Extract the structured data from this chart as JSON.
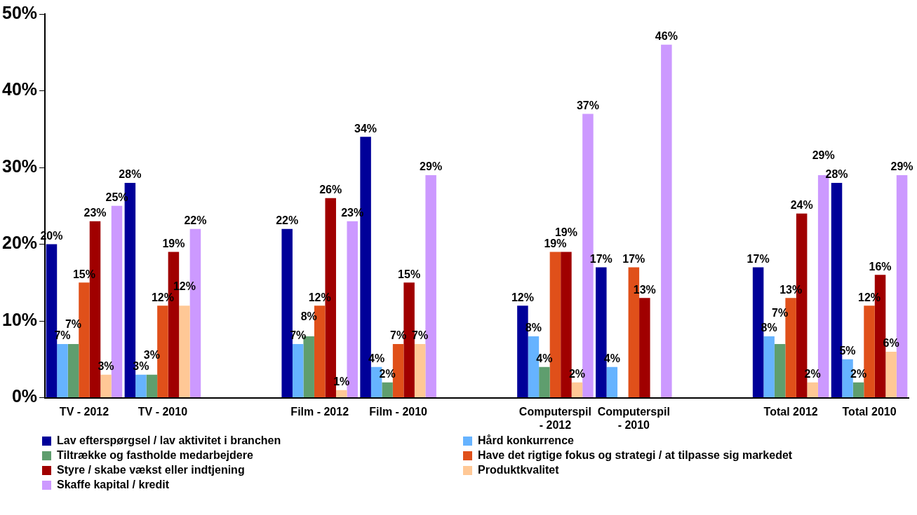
{
  "chart_data": {
    "type": "bar",
    "categories": [
      "TV - 2012",
      "TV - 2010",
      null,
      "Film - 2012",
      "Film - 2010",
      null,
      "Computerspil - 2012",
      "Computerspil - 2010",
      null,
      "Total 2012",
      "Total 2010"
    ],
    "series": [
      {
        "name": "Lav efterspørgsel / lav aktivitet i branchen",
        "color": "#000099",
        "values": [
          20,
          28,
          null,
          22,
          34,
          null,
          12,
          17,
          null,
          17,
          28
        ],
        "value_labels": [
          "20%",
          "28%",
          null,
          "22%",
          "34%",
          null,
          "12%",
          "17%",
          null,
          "17%",
          "28%"
        ]
      },
      {
        "name": "Hård konkurrence",
        "color": "#66b3ff",
        "values": [
          7,
          3,
          null,
          7,
          4,
          null,
          8,
          4,
          null,
          8,
          5
        ],
        "value_labels": [
          "7%",
          "3%",
          null,
          "7%",
          "4%",
          null,
          "8%",
          "4%",
          null,
          "8%",
          "5%"
        ]
      },
      {
        "name": "Tiltrække og fastholde medarbejdere",
        "color": "#5f9e6e",
        "values": [
          7,
          3,
          null,
          8,
          2,
          null,
          4,
          null,
          null,
          7,
          2
        ],
        "value_labels": [
          "7%",
          "3%",
          null,
          "8%",
          "2%",
          null,
          "4%",
          null,
          null,
          "7%",
          "2%"
        ]
      },
      {
        "name": "Have det rigtige fokus og strategi / at tilpasse sig markedet",
        "color": "#e0501a",
        "values": [
          15,
          12,
          null,
          12,
          7,
          null,
          19,
          17,
          null,
          13,
          12
        ],
        "value_labels": [
          "15%",
          "12%",
          null,
          "12%",
          "7%",
          null,
          "19%",
          "17%",
          null,
          "13%",
          "12%"
        ]
      },
      {
        "name": "Styre / skabe vækst eller indtjening",
        "color": "#a00000",
        "values": [
          23,
          19,
          null,
          26,
          15,
          null,
          19,
          13,
          null,
          24,
          16
        ],
        "value_labels": [
          "23%",
          "19%",
          null,
          "26%",
          "15%",
          null,
          "19%",
          "13%",
          null,
          "24%",
          "16%"
        ]
      },
      {
        "name": "Produktkvalitet",
        "color": "#ffc896",
        "values": [
          3,
          12,
          null,
          1,
          7,
          null,
          2,
          null,
          null,
          2,
          6
        ],
        "value_labels": [
          "3%",
          "12%",
          null,
          "1%",
          "7%",
          null,
          "2%",
          null,
          null,
          "2%",
          "6%"
        ]
      },
      {
        "name": "Skaffe kapital / kredit",
        "color": "#cc99ff",
        "values": [
          25,
          22,
          null,
          23,
          29,
          null,
          37,
          46,
          null,
          29,
          29
        ],
        "value_labels": [
          "25%",
          "22%",
          null,
          "23%",
          "29%",
          null,
          "37%",
          "46%",
          null,
          "29%",
          "29%"
        ]
      }
    ],
    "ylim": [
      0,
      50
    ],
    "yticks": [
      {
        "value": 0,
        "label": "0%"
      },
      {
        "value": 10,
        "label": "10%"
      },
      {
        "value": 20,
        "label": "20%"
      },
      {
        "value": 30,
        "label": "30%"
      },
      {
        "value": 40,
        "label": "40%"
      },
      {
        "value": 50,
        "label": "50%"
      }
    ],
    "grid": false,
    "legend": "bottom"
  }
}
